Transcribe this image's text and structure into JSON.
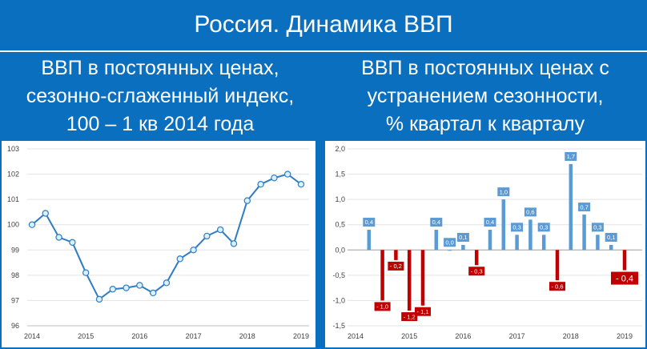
{
  "header": {
    "title": "Россия. Динамика ВВП",
    "left_subtitle": [
      "ВВП в постоянных ценах,",
      "сезонно-сглаженный индекс,",
      "100 – 1 кв 2014 года"
    ],
    "right_subtitle": [
      "ВВП в постоянных ценах с",
      "устранением сезонности,",
      "% квартал к кварталу"
    ]
  },
  "colors": {
    "background": "#0b6fbf",
    "line": "#2e7cc4",
    "marker_fill": "#d9f0ff",
    "positive_bar": "#5b9bd5",
    "negative_bar": "#c00000"
  },
  "chart_data": [
    {
      "type": "line",
      "title": "ВВП в постоянных ценах, сезонно-сглаженный индекс, 100 – 1 кв 2014 года",
      "x": [
        "2014Q1",
        "2014Q2",
        "2014Q3",
        "2014Q4",
        "2015Q1",
        "2015Q2",
        "2015Q3",
        "2015Q4",
        "2016Q1",
        "2016Q2",
        "2016Q3",
        "2016Q4",
        "2017Q1",
        "2017Q2",
        "2017Q3",
        "2017Q4",
        "2018Q1",
        "2018Q2",
        "2018Q3",
        "2018Q4",
        "2019Q1"
      ],
      "values": [
        100.0,
        100.45,
        99.5,
        99.3,
        98.1,
        97.05,
        97.45,
        97.5,
        97.6,
        97.3,
        97.7,
        98.65,
        99.0,
        99.55,
        99.8,
        99.25,
        100.95,
        101.6,
        101.85,
        102.0,
        101.6
      ],
      "x_tick_labels": [
        "2014",
        "2015",
        "2016",
        "2017",
        "2018",
        "2019"
      ],
      "y_tick_labels": [
        "96",
        "97",
        "98",
        "99",
        "100",
        "101",
        "102",
        "103"
      ],
      "ylim": [
        96,
        103
      ],
      "grid": "horizontal"
    },
    {
      "type": "bar",
      "title": "ВВП в постоянных ценах с устранением сезонности, % квартал к кварталу",
      "x": [
        "2014Q2",
        "2014Q3",
        "2014Q4",
        "2015Q1",
        "2015Q2",
        "2015Q3",
        "2015Q4",
        "2016Q1",
        "2016Q2",
        "2016Q3",
        "2016Q4",
        "2017Q1",
        "2017Q2",
        "2017Q3",
        "2017Q4",
        "2018Q1",
        "2018Q2",
        "2018Q3",
        "2018Q4",
        "2019Q1"
      ],
      "values": [
        0.4,
        -1.0,
        -0.2,
        -1.2,
        -1.1,
        0.4,
        0.0,
        0.1,
        -0.3,
        0.4,
        1.0,
        0.3,
        0.6,
        0.3,
        -0.6,
        1.7,
        0.7,
        0.3,
        0.1,
        -0.4
      ],
      "data_labels": [
        "0,4",
        "- 1,0",
        "- 0,2",
        "- 1,2",
        "- 1,1",
        "0,4",
        "0,0",
        "0,1",
        "- 0,3",
        "0,4",
        "1,0",
        "0,3",
        "0,6",
        "0,3",
        "- 0,6",
        "1,7",
        "0,7",
        "0,3",
        "0,1",
        "- 0,4"
      ],
      "x_tick_labels": [
        "2014",
        "2015",
        "2016",
        "2017",
        "2018",
        "2019"
      ],
      "y_tick_labels": [
        "-1,5",
        "-1,0",
        "-0,5",
        "0,0",
        "0,5",
        "1,0",
        "1,5",
        "2,0"
      ],
      "ylim": [
        -1.5,
        2.0
      ],
      "grid": "horizontal"
    }
  ]
}
